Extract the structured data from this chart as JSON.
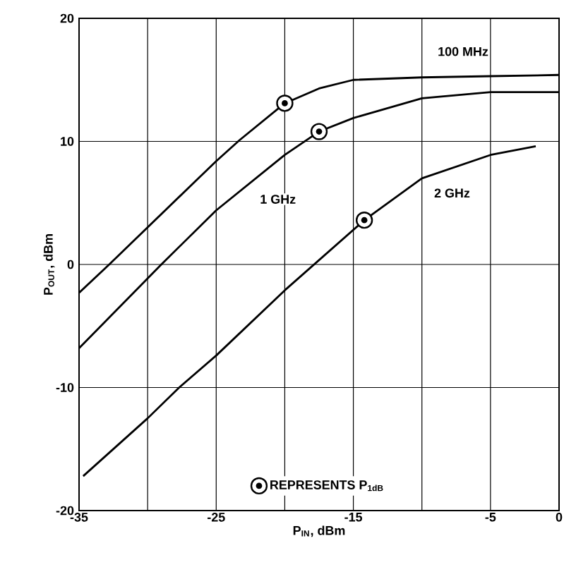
{
  "chart_data": {
    "type": "line",
    "xlabel": "P$_{IN}$, dBm",
    "ylabel": "P$_{OUT}$, dBm",
    "xlim": [
      -35,
      0
    ],
    "ylim": [
      -20,
      20
    ],
    "xticks": [
      -35,
      {
        "value": -30,
        "label": null
      },
      -25,
      {
        "value": -20,
        "label": null
      },
      -15,
      {
        "value": -10,
        "label": null
      },
      -5,
      0
    ],
    "yticks": [
      -20,
      -10,
      0,
      10,
      20
    ],
    "grid": true,
    "legend": "bottom",
    "line_style": "solid",
    "series": [
      {
        "name": "100 MHz",
        "color": "#000000",
        "x": [
          -35,
          -32.8,
          -25,
          -23.3,
          -20,
          -17.5,
          -15,
          -10,
          -5,
          0
        ],
        "values": [
          -2.3,
          0,
          8.4,
          10.1,
          13.1,
          14.3,
          15.0,
          15.2,
          15.3,
          15.4
        ]
      },
      {
        "name": "1 GHz",
        "color": "#000000",
        "x": [
          -35,
          -29,
          -25,
          -20,
          -17.5,
          -15,
          -10,
          -5,
          0
        ],
        "values": [
          -6.8,
          0,
          4.4,
          8.9,
          10.8,
          11.9,
          13.5,
          14.0,
          14.0
        ]
      },
      {
        "name": "2 GHz",
        "color": "#000000",
        "x": [
          -34.7,
          -30,
          -27.7,
          -25,
          -20,
          -14.2,
          -10,
          -5,
          -1.7
        ],
        "values": [
          -17.2,
          -12.5,
          -10,
          -7.4,
          -2.1,
          3.6,
          7.0,
          8.9,
          9.6
        ]
      },
      {
        "name": "REPRESENTS P$_{1dB}$",
        "type": "scatter",
        "marker": "circle",
        "color": "#000000",
        "x": [
          -20,
          -17.5,
          -14.2
        ],
        "values": [
          13.1,
          10.8,
          3.6
        ]
      }
    ]
  }
}
